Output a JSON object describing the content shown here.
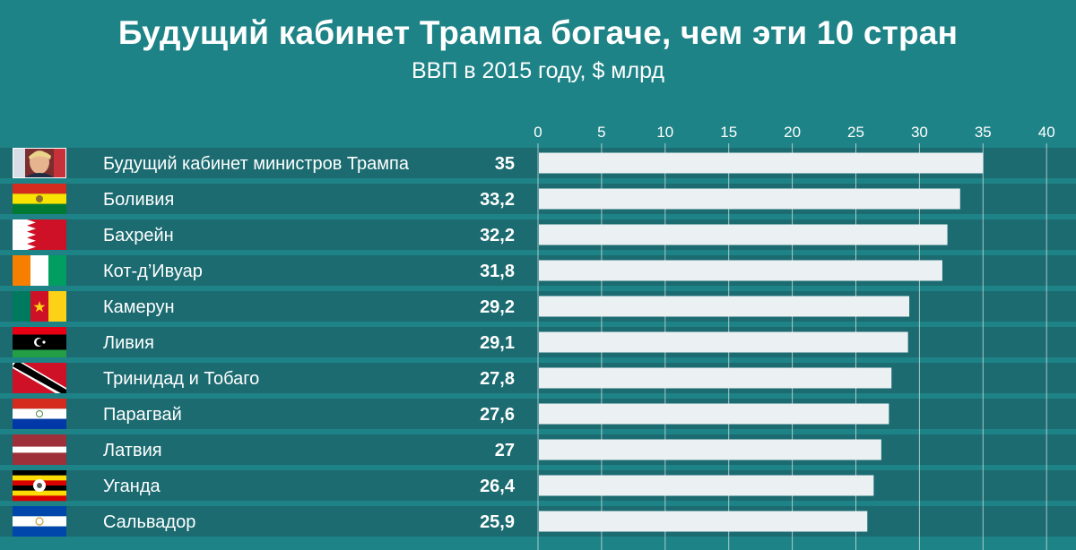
{
  "chart_data": {
    "type": "bar",
    "orientation": "horizontal",
    "title": "Будущий кабинет Трампа богаче, чем эти 10 стран",
    "subtitle": "ВВП в 2015 году, $ млрд",
    "xlim": [
      0,
      40
    ],
    "ticks": [
      "0",
      "5",
      "10",
      "15",
      "20",
      "25",
      "30",
      "35",
      "40"
    ],
    "tick_values": [
      0,
      5,
      10,
      15,
      20,
      25,
      30,
      35,
      40
    ],
    "grid": true,
    "categories": [
      "Будущий кабинет министров Трампа",
      "Боливия",
      "Бахрейн",
      "Кот-д’Ивуар",
      "Камерун",
      "Ливия",
      "Тринидад и Тобаго",
      "Парагвай",
      "Латвия",
      "Уганда",
      "Сальвадор"
    ],
    "value_labels": [
      "35",
      "33,2",
      "32,2",
      "31,8",
      "29,2",
      "29,1",
      "27,8",
      "27,6",
      "27",
      "26,4",
      "25,9"
    ],
    "values": [
      35,
      33.2,
      32.2,
      31.8,
      29.2,
      29.1,
      27.8,
      27.6,
      27,
      26.4,
      25.9
    ],
    "icons": [
      "trump-photo-icon",
      "bolivia-flag-icon",
      "bahrain-flag-icon",
      "cote-divoire-flag-icon",
      "cameroon-flag-icon",
      "libya-flag-icon",
      "trinidad-tobago-flag-icon",
      "paraguay-flag-icon",
      "latvia-flag-icon",
      "uganda-flag-icon",
      "el-salvador-flag-icon"
    ]
  },
  "colors": {
    "background": "#1e8387",
    "row_band": "#1b6b71",
    "bar": "#ebf1f3",
    "gridline": "#d6e6e8"
  }
}
